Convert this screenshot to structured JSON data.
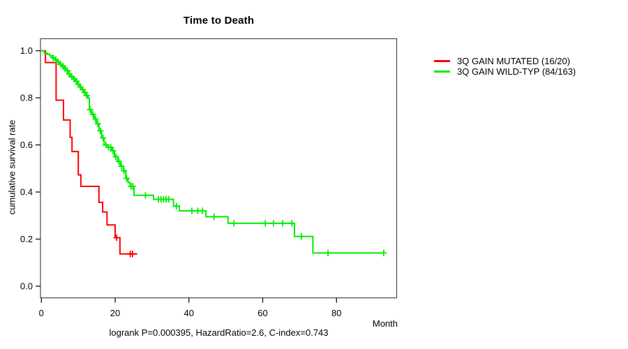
{
  "window": {
    "background": "#ffffff"
  },
  "chart_data": {
    "type": "line",
    "subtype": "kaplan-meier-step-survival",
    "title": "Time to Death",
    "xlabel": "Month",
    "ylabel": "cumulative survival rate",
    "footer": "logrank P=0.000395, HazardRatio=2.6, C-index=0.743",
    "xlim": [
      0,
      96
    ],
    "ylim": [
      0,
      1.0
    ],
    "x_ticks": [
      0,
      20,
      40,
      60,
      80
    ],
    "x_tick_labels": [
      "0",
      "20",
      "40",
      "60",
      "80"
    ],
    "y_ticks": [
      0.0,
      0.2,
      0.4,
      0.6,
      0.8,
      1.0
    ],
    "y_tick_labels": [
      "0.0",
      "0.2",
      "0.4",
      "0.6",
      "0.8",
      "1.0"
    ],
    "grid": false,
    "legend_position": "right-outside",
    "series": [
      {
        "name": "3Q GAIN MUTATED (16/20)",
        "color": "#ff0000",
        "events_total": "16/20",
        "steps": [
          [
            0,
            1.0
          ],
          [
            1.1,
            0.95
          ],
          [
            4.0,
            0.79
          ],
          [
            6.0,
            0.706
          ],
          [
            7.8,
            0.632
          ],
          [
            8.3,
            0.572
          ],
          [
            10.0,
            0.473
          ],
          [
            10.7,
            0.424
          ],
          [
            15.6,
            0.356
          ],
          [
            16.6,
            0.315
          ],
          [
            17.8,
            0.26
          ],
          [
            20.0,
            0.206
          ],
          [
            21.3,
            0.137
          ]
        ],
        "end_time": 26.0,
        "censor_times": [
          20.4,
          24.1,
          24.7
        ]
      },
      {
        "name": "3Q GAIN WILD-TYP (84/163)",
        "color": "#00ee00",
        "events_total": "84/163",
        "steps": [
          [
            0,
            1.0
          ],
          [
            0.8,
            0.99
          ],
          [
            1.6,
            0.985
          ],
          [
            2.3,
            0.978
          ],
          [
            3.0,
            0.97
          ],
          [
            3.7,
            0.962
          ],
          [
            4.3,
            0.952
          ],
          [
            5.0,
            0.943
          ],
          [
            5.6,
            0.934
          ],
          [
            6.2,
            0.925
          ],
          [
            6.8,
            0.916
          ],
          [
            7.4,
            0.9
          ],
          [
            8.0,
            0.89
          ],
          [
            8.6,
            0.88
          ],
          [
            9.2,
            0.87
          ],
          [
            9.8,
            0.858
          ],
          [
            10.4,
            0.846
          ],
          [
            11.0,
            0.835
          ],
          [
            11.6,
            0.822
          ],
          [
            12.2,
            0.81
          ],
          [
            12.6,
            0.8
          ],
          [
            13.0,
            0.75
          ],
          [
            13.6,
            0.73
          ],
          [
            14.3,
            0.71
          ],
          [
            15.0,
            0.69
          ],
          [
            15.6,
            0.66
          ],
          [
            16.3,
            0.63
          ],
          [
            17.0,
            0.6
          ],
          [
            18.0,
            0.59
          ],
          [
            19.1,
            0.575
          ],
          [
            19.8,
            0.55
          ],
          [
            20.7,
            0.53
          ],
          [
            21.4,
            0.51
          ],
          [
            22.2,
            0.49
          ],
          [
            22.9,
            0.458
          ],
          [
            23.5,
            0.44
          ],
          [
            24.1,
            0.424
          ],
          [
            25.1,
            0.386
          ],
          [
            30.4,
            0.369
          ],
          [
            35.8,
            0.34
          ],
          [
            37.4,
            0.32
          ],
          [
            44.6,
            0.295
          ],
          [
            50.6,
            0.267
          ],
          [
            68.6,
            0.211
          ],
          [
            73.6,
            0.141
          ]
        ],
        "end_time": 92.8,
        "censor_times": [
          3.2,
          3.9,
          4.6,
          5.2,
          5.9,
          6.4,
          7.0,
          7.6,
          8.2,
          8.9,
          9.5,
          10.0,
          10.6,
          11.2,
          11.8,
          12.3,
          13.2,
          14.0,
          14.7,
          15.3,
          16.0,
          16.7,
          17.5,
          18.2,
          18.8,
          19.4,
          20.2,
          21.0,
          21.7,
          22.4,
          23.1,
          24.3,
          24.8,
          28.2,
          31.7,
          32.4,
          33.1,
          33.8,
          34.5,
          36.6,
          40.8,
          42.4,
          43.7,
          46.8,
          52.2,
          60.7,
          62.9,
          65.4,
          67.9,
          70.5,
          77.7,
          92.8
        ]
      }
    ]
  }
}
